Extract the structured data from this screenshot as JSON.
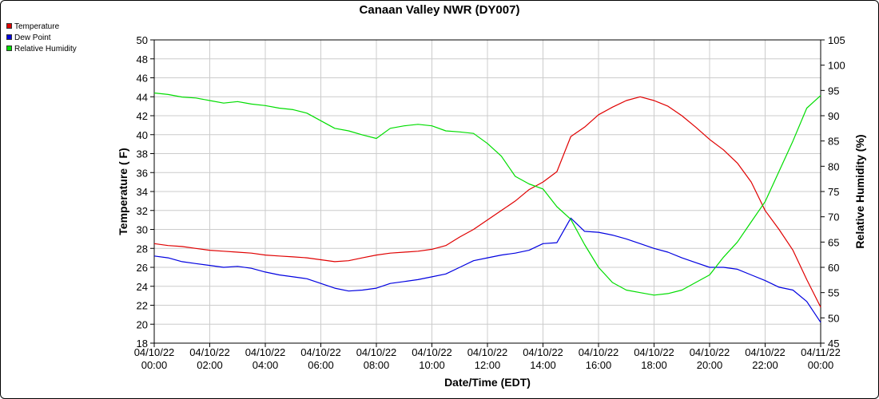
{
  "chart_data": {
    "type": "line",
    "title": "Canaan Valley NWR (DY007)",
    "xlabel": "Date/Time (EDT)",
    "ylabel": "Temperature ( F)",
    "y2label": "Relative Humidity (%)",
    "ylim": [
      18,
      50
    ],
    "y2lim": [
      45,
      105
    ],
    "yticks": [
      18,
      20,
      22,
      24,
      26,
      28,
      30,
      32,
      34,
      36,
      38,
      40,
      42,
      44,
      46,
      48,
      50
    ],
    "y2ticks": [
      45,
      50,
      55,
      60,
      65,
      70,
      75,
      80,
      85,
      90,
      95,
      100,
      105
    ],
    "xlim": [
      0,
      24
    ],
    "xticks": [
      {
        "x": 0,
        "date": "04/10/22",
        "time": "00:00"
      },
      {
        "x": 2,
        "date": "04/10/22",
        "time": "02:00"
      },
      {
        "x": 4,
        "date": "04/10/22",
        "time": "04:00"
      },
      {
        "x": 6,
        "date": "04/10/22",
        "time": "06:00"
      },
      {
        "x": 8,
        "date": "04/10/22",
        "time": "08:00"
      },
      {
        "x": 10,
        "date": "04/10/22",
        "time": "10:00"
      },
      {
        "x": 12,
        "date": "04/10/22",
        "time": "12:00"
      },
      {
        "x": 14,
        "date": "04/10/22",
        "time": "14:00"
      },
      {
        "x": 16,
        "date": "04/10/22",
        "time": "16:00"
      },
      {
        "x": 18,
        "date": "04/10/22",
        "time": "18:00"
      },
      {
        "x": 20,
        "date": "04/10/22",
        "time": "20:00"
      },
      {
        "x": 22,
        "date": "04/10/22",
        "time": "22:00"
      },
      {
        "x": 24,
        "date": "04/11/22",
        "time": "00:00"
      }
    ],
    "grid": true,
    "legend": "top-left",
    "series": [
      {
        "name": "Temperature",
        "color": "#e00000",
        "axis": "left",
        "x": [
          0,
          0.5,
          1,
          1.5,
          2,
          2.5,
          3,
          3.5,
          4,
          4.5,
          5,
          5.5,
          6,
          6.5,
          7,
          7.5,
          8,
          8.5,
          9,
          9.5,
          10,
          10.5,
          11,
          11.5,
          12,
          12.5,
          13,
          13.5,
          14,
          14.5,
          15,
          15.5,
          16,
          16.5,
          17,
          17.5,
          18,
          18.5,
          19,
          19.5,
          20,
          20.5,
          21,
          21.5,
          22,
          22.5,
          23,
          23.5,
          24
        ],
        "values": [
          28.5,
          28.3,
          28.2,
          28.0,
          27.8,
          27.7,
          27.6,
          27.5,
          27.3,
          27.2,
          27.1,
          27.0,
          26.8,
          26.6,
          26.7,
          27.0,
          27.3,
          27.5,
          27.6,
          27.7,
          27.9,
          28.3,
          29.2,
          30.0,
          31.0,
          32.0,
          33.0,
          34.2,
          35.0,
          36.1,
          39.8,
          40.8,
          42.1,
          42.9,
          43.6,
          44.0,
          43.6,
          43.0,
          42.0,
          40.8,
          39.5,
          38.4,
          37.0,
          35.0,
          32.0,
          30.0,
          27.8,
          24.7,
          21.8
        ]
      },
      {
        "name": "Dew Point",
        "color": "#0000e0",
        "axis": "left",
        "x": [
          0,
          0.5,
          1,
          1.5,
          2,
          2.5,
          3,
          3.5,
          4,
          4.5,
          5,
          5.5,
          6,
          6.5,
          7,
          7.5,
          8,
          8.5,
          9,
          9.5,
          10,
          10.5,
          11,
          11.5,
          12,
          12.5,
          13,
          13.5,
          14,
          14.5,
          15,
          15.5,
          16,
          16.5,
          17,
          17.5,
          18,
          18.5,
          19,
          19.5,
          20,
          20.5,
          21,
          21.5,
          22,
          22.5,
          23,
          23.5,
          24
        ],
        "values": [
          27.2,
          27.0,
          26.6,
          26.4,
          26.2,
          26.0,
          26.1,
          25.9,
          25.5,
          25.2,
          25.0,
          24.8,
          24.3,
          23.8,
          23.5,
          23.6,
          23.8,
          24.3,
          24.5,
          24.7,
          25.0,
          25.3,
          26.0,
          26.7,
          27.0,
          27.3,
          27.5,
          27.8,
          28.5,
          28.6,
          31.2,
          29.8,
          29.7,
          29.4,
          29.0,
          28.5,
          28.0,
          27.6,
          27.0,
          26.5,
          26.0,
          26.0,
          25.8,
          25.2,
          24.6,
          23.9,
          23.6,
          22.4,
          20.2
        ]
      },
      {
        "name": "Relative Humidity",
        "color": "#00dd00",
        "axis": "right",
        "x": [
          0,
          0.5,
          1,
          1.5,
          2,
          2.5,
          3,
          3.5,
          4,
          4.5,
          5,
          5.5,
          6,
          6.5,
          7,
          7.5,
          8,
          8.5,
          9,
          9.5,
          10,
          10.5,
          11,
          11.5,
          12,
          12.5,
          13,
          13.5,
          14,
          14.5,
          15,
          15.5,
          16,
          16.5,
          17,
          17.5,
          18,
          18.5,
          19,
          19.5,
          20,
          20.5,
          21,
          21.5,
          22,
          22.5,
          23,
          23.5,
          24
        ],
        "values": [
          94.5,
          94.2,
          93.7,
          93.5,
          93.0,
          92.5,
          92.8,
          92.3,
          92.0,
          91.5,
          91.2,
          90.5,
          89.0,
          87.5,
          87.0,
          86.2,
          85.5,
          87.5,
          88.0,
          88.3,
          88.0,
          87.0,
          86.8,
          86.5,
          84.5,
          82.0,
          78.0,
          76.5,
          75.5,
          72.0,
          69.5,
          64.5,
          60.0,
          57.0,
          55.5,
          55.0,
          54.5,
          54.8,
          55.5,
          57.0,
          58.5,
          62.0,
          65.0,
          69.0,
          73.0,
          79.0,
          85.0,
          91.5,
          94.0
        ]
      }
    ]
  }
}
